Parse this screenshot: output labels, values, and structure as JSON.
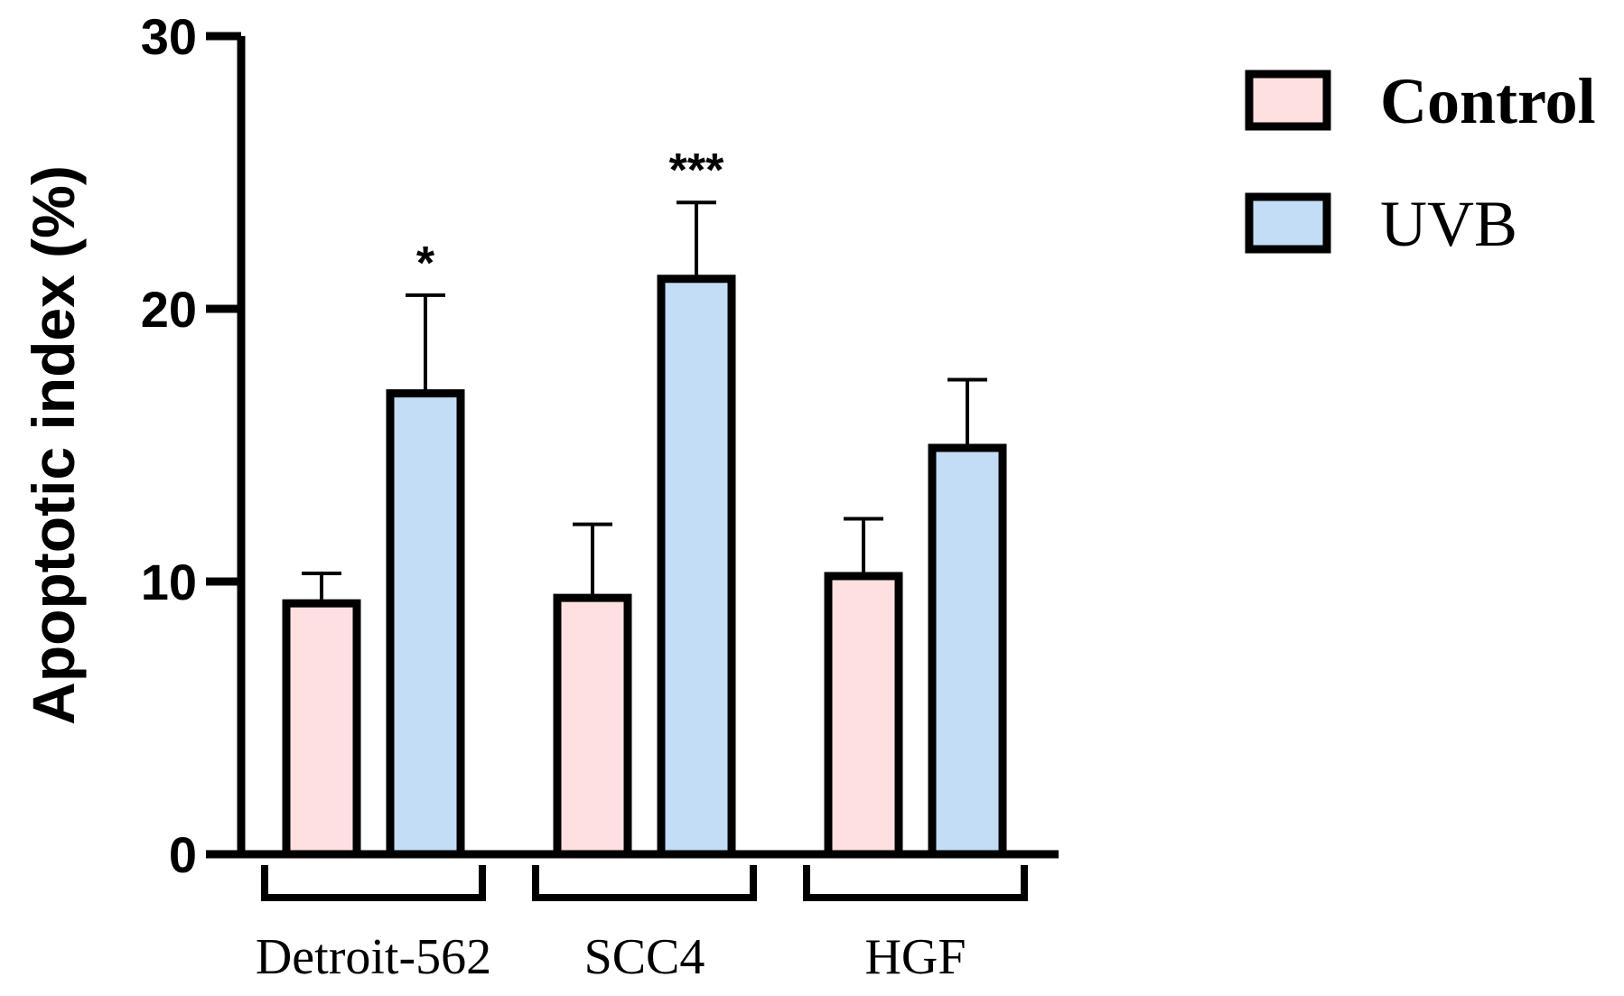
{
  "chart_data": {
    "type": "bar",
    "ylabel": "Apoptotic index (%)",
    "xlabel": "",
    "ylim": [
      0,
      30
    ],
    "yticks": [
      0,
      10,
      20,
      30
    ],
    "categories": [
      "Detroit-562",
      "SCC4",
      "HGF"
    ],
    "series": [
      {
        "name": "Control",
        "color": "#fde0df",
        "values": [
          9.2,
          9.4,
          10.2
        ],
        "errors": [
          1.1,
          2.7,
          2.1
        ]
      },
      {
        "name": "UVB",
        "color": "#c3ddf6",
        "values": [
          16.9,
          21.1,
          14.9
        ],
        "errors": [
          3.6,
          2.8,
          2.5
        ]
      }
    ],
    "significance": [
      "*",
      "***",
      ""
    ],
    "legend": {
      "position": "top-right",
      "entries": [
        "Control",
        "UVB"
      ]
    },
    "grid": false
  }
}
